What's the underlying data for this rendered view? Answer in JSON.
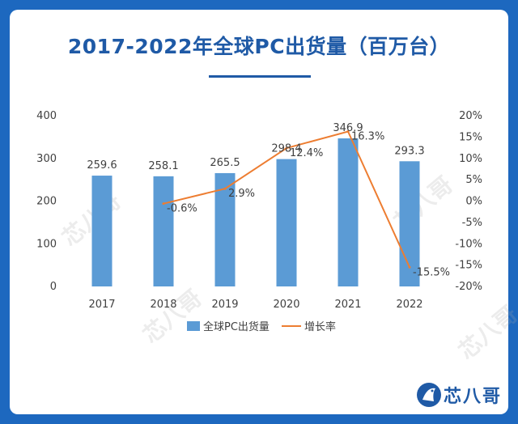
{
  "title": "2017-2022年全球PC出货量（百万台）",
  "brand": {
    "name": "芯八哥",
    "logo_icon": "bird-icon",
    "watermark": "芯八哥"
  },
  "colors": {
    "background": "#1d68bf",
    "bar": "#5b9bd5",
    "line": "#ed7d31",
    "title": "#1f5aa6",
    "text": "#404040"
  },
  "chart_data": {
    "type": "bar",
    "categories": [
      "2017",
      "2018",
      "2019",
      "2020",
      "2021",
      "2022"
    ],
    "series": [
      {
        "name": "全球PC出货量",
        "type": "bar",
        "axis": "left",
        "values": [
          259.6,
          258.1,
          265.5,
          298.4,
          346.9,
          293.3
        ],
        "labels": [
          "259.6",
          "258.1",
          "265.5",
          "298.4",
          "346.9",
          "293.3"
        ]
      },
      {
        "name": "增长率",
        "type": "line",
        "axis": "right",
        "values": [
          null,
          -0.6,
          2.9,
          12.4,
          16.3,
          -15.5
        ],
        "labels": [
          "",
          "-0.6%",
          "2.9%",
          "12.4%",
          "16.3%",
          "-15.5%"
        ]
      }
    ],
    "y_left": {
      "ylim": [
        0,
        400
      ],
      "ticks": [
        "0",
        "100",
        "200",
        "300",
        "400"
      ]
    },
    "y_right": {
      "ylim": [
        -20,
        20
      ],
      "ticks": [
        "-20%",
        "-15%",
        "-10%",
        "-5%",
        "0%",
        "5%",
        "10%",
        "15%",
        "20%"
      ]
    },
    "grid": false,
    "legend": "bottom"
  }
}
